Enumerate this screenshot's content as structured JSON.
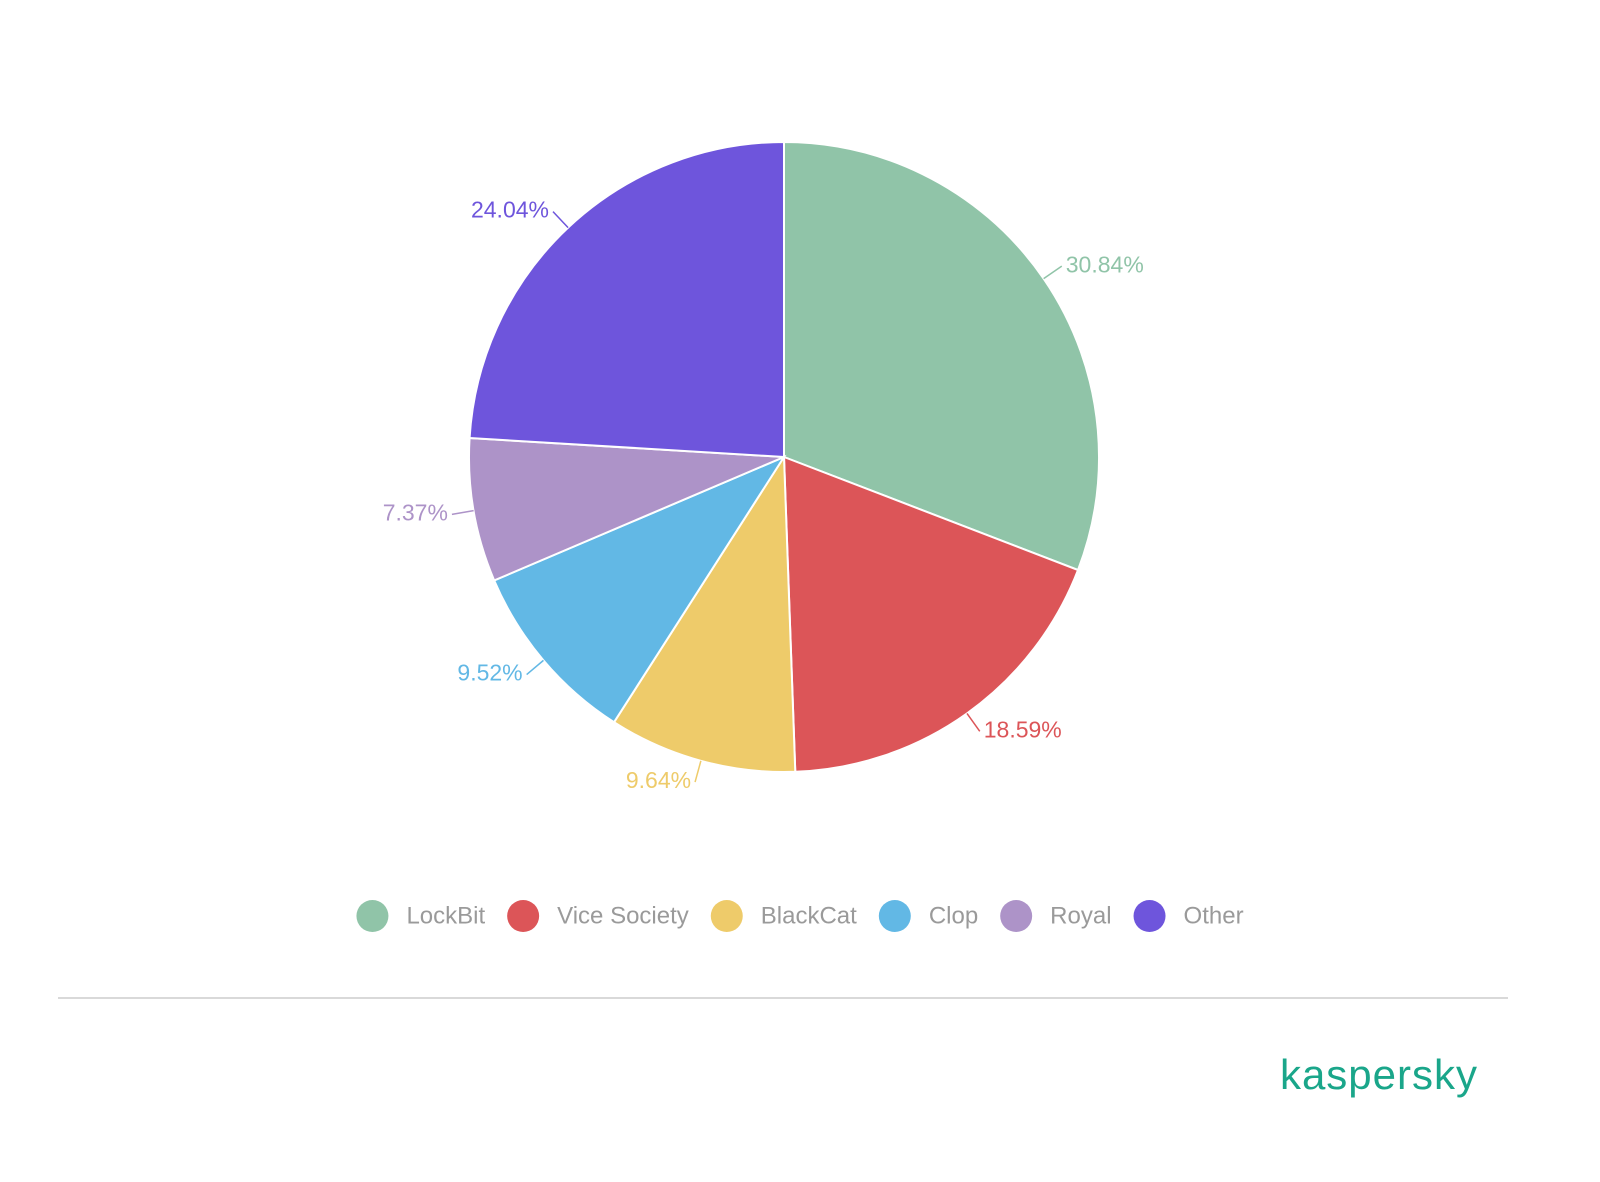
{
  "chart_data": {
    "type": "pie",
    "categories": [
      "LockBit",
      "Vice Society",
      "BlackCat",
      "Clop",
      "Royal",
      "Other"
    ],
    "values": [
      30.84,
      18.59,
      9.64,
      9.52,
      7.37,
      24.04
    ],
    "value_labels": [
      "30.84%",
      "18.59%",
      "9.64%",
      "9.52%",
      "7.37%",
      "24.04%"
    ],
    "colors": [
      "#90c4a8",
      "#dc5558",
      "#eecb6a",
      "#62b8e5",
      "#ad93c8",
      "#6e55dc"
    ],
    "legend": "bottom"
  },
  "footer": {
    "logo": "kaspersky"
  }
}
